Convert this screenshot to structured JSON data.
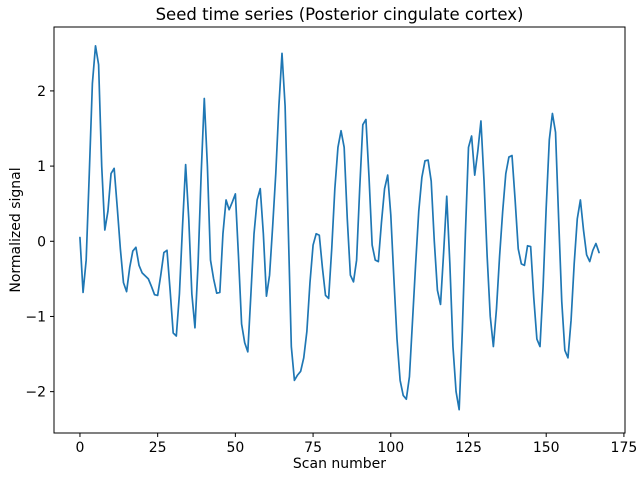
{
  "chart_data": {
    "type": "line",
    "title": "Seed time series (Posterior cingulate cortex)",
    "xlabel": "Scan number",
    "ylabel": "Normalized signal",
    "x_ticks": [
      0,
      25,
      50,
      75,
      100,
      125,
      150,
      175
    ],
    "y_ticks": [
      -2,
      -1,
      0,
      1,
      2
    ],
    "xlim": [
      -8.35,
      175.35
    ],
    "ylim": [
      -2.55,
      2.85
    ],
    "grid": false,
    "legend": null,
    "line_color": "#1f77b4",
    "background_color": "#ffffff",
    "n_points": 168,
    "series": [
      {
        "name": "seed-time-series",
        "x_start": 0,
        "x_step": 1,
        "values": [
          0.05,
          -0.68,
          -0.25,
          0.9,
          2.1,
          2.6,
          2.35,
          1.0,
          0.15,
          0.4,
          0.9,
          0.97,
          0.45,
          -0.1,
          -0.55,
          -0.67,
          -0.35,
          -0.13,
          -0.08,
          -0.32,
          -0.42,
          -0.46,
          -0.5,
          -0.6,
          -0.71,
          -0.72,
          -0.45,
          -0.15,
          -0.12,
          -0.65,
          -1.22,
          -1.26,
          -0.7,
          0.2,
          1.02,
          0.3,
          -0.7,
          -1.15,
          -0.3,
          0.9,
          1.9,
          1.0,
          -0.25,
          -0.5,
          -0.69,
          -0.68,
          0.1,
          0.55,
          0.42,
          0.52,
          0.63,
          -0.2,
          -1.1,
          -1.35,
          -1.47,
          -0.7,
          0.1,
          0.55,
          0.7,
          0.1,
          -0.73,
          -0.45,
          0.2,
          0.9,
          1.8,
          2.5,
          1.8,
          0.2,
          -1.4,
          -1.85,
          -1.78,
          -1.73,
          -1.55,
          -1.2,
          -0.55,
          -0.05,
          0.1,
          0.08,
          -0.35,
          -0.72,
          -0.76,
          -0.1,
          0.7,
          1.25,
          1.47,
          1.25,
          0.3,
          -0.45,
          -0.54,
          -0.25,
          0.7,
          1.55,
          1.62,
          0.85,
          -0.05,
          -0.25,
          -0.27,
          0.25,
          0.7,
          0.88,
          0.35,
          -0.5,
          -1.3,
          -1.85,
          -2.05,
          -2.1,
          -1.8,
          -1.05,
          -0.3,
          0.4,
          0.85,
          1.07,
          1.08,
          0.8,
          0.0,
          -0.65,
          -0.84,
          -0.15,
          0.6,
          -0.3,
          -1.4,
          -2.0,
          -2.24,
          -1.2,
          0.1,
          1.25,
          1.4,
          0.88,
          1.2,
          1.6,
          0.8,
          -0.2,
          -1.0,
          -1.4,
          -0.9,
          -0.2,
          0.4,
          0.9,
          1.12,
          1.14,
          0.55,
          -0.1,
          -0.3,
          -0.32,
          -0.06,
          -0.07,
          -0.75,
          -1.3,
          -1.4,
          -0.6,
          0.45,
          1.35,
          1.7,
          1.45,
          0.3,
          -0.8,
          -1.45,
          -1.55,
          -1.05,
          -0.3,
          0.3,
          0.55,
          0.15,
          -0.18,
          -0.27,
          -0.12,
          -0.03,
          -0.15
        ]
      }
    ]
  }
}
